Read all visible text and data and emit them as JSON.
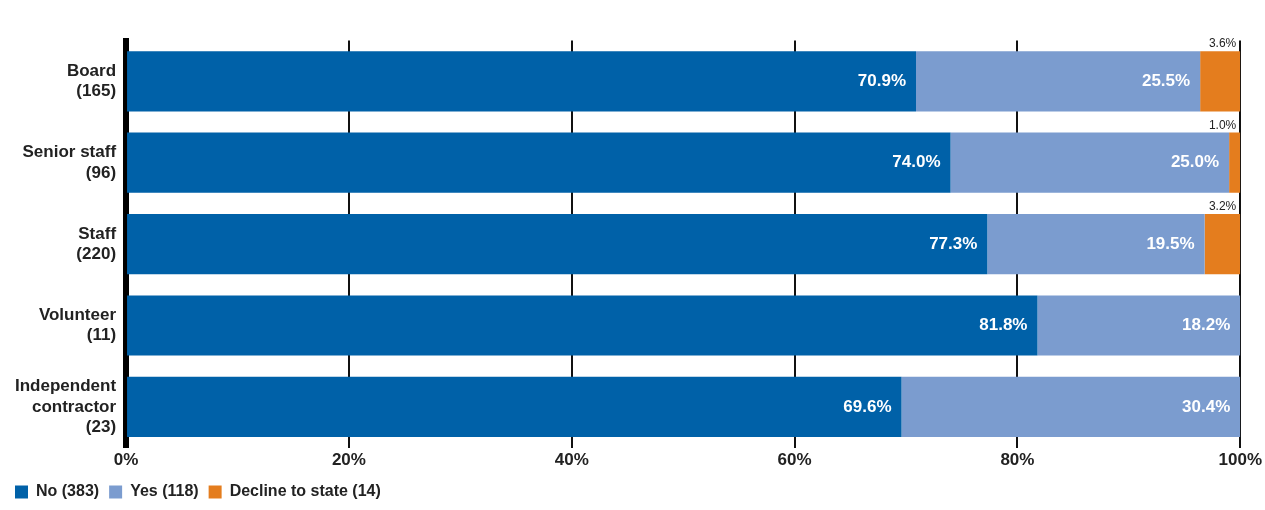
{
  "chart_data": {
    "type": "bar",
    "orientation": "horizontal",
    "stacked": true,
    "categories": [
      "Board\n(165)",
      "Senior staff\n(96)",
      "Staff\n(220)",
      "Volunteer\n(11)",
      "Independent\ncontractor\n(23)"
    ],
    "series": [
      {
        "name": "No (383)",
        "color": "#0061a8",
        "values": [
          70.9,
          74.0,
          77.3,
          81.8,
          69.6
        ],
        "value_labels": [
          "70.9%",
          "74.0%",
          "77.3%",
          "81.8%",
          "69.6%"
        ]
      },
      {
        "name": "Yes (118)",
        "color": "#7b9ccf",
        "values": [
          25.5,
          25.0,
          19.5,
          18.2,
          30.4
        ],
        "value_labels": [
          "25.5%",
          "25.0%",
          "19.5%",
          "18.2%",
          "30.4%"
        ]
      },
      {
        "name": "Decline to state (14)",
        "color": "#e47d1e",
        "values": [
          3.6,
          1.0,
          3.2,
          null,
          null
        ],
        "value_labels": [
          "3.6%",
          "1.0%",
          "3.2%",
          null,
          null
        ]
      }
    ],
    "xlim": [
      0,
      100
    ],
    "xticks": [
      {
        "value": 0,
        "label": "0%"
      },
      {
        "value": 20,
        "label": "20%"
      },
      {
        "value": 40,
        "label": "40%"
      },
      {
        "value": 60,
        "label": "60%"
      },
      {
        "value": 80,
        "label": "80%"
      },
      {
        "value": 100,
        "label": "100%"
      }
    ],
    "grid": "x",
    "legend": "bottom left"
  }
}
